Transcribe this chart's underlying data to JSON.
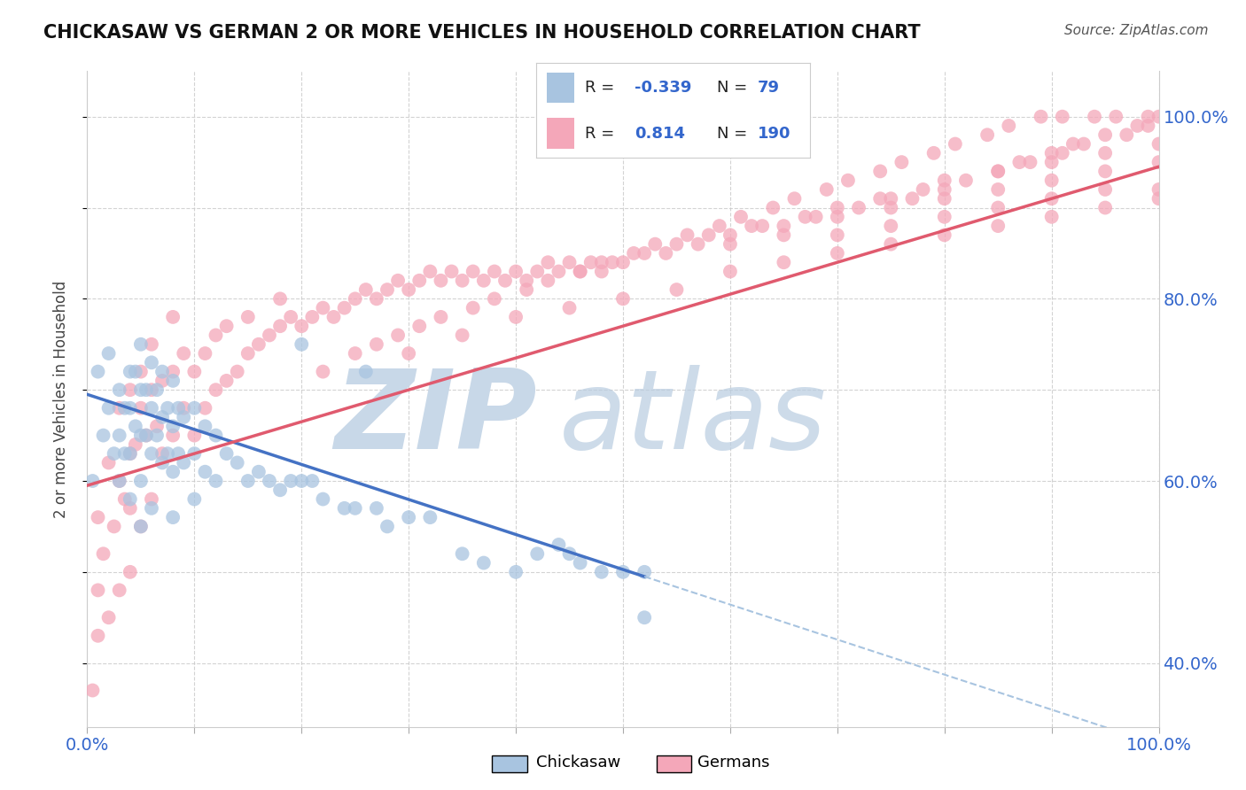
{
  "title": "CHICKASAW VS GERMAN 2 OR MORE VEHICLES IN HOUSEHOLD CORRELATION CHART",
  "source_text": "Source: ZipAtlas.com",
  "ylabel": "2 or more Vehicles in Household",
  "xlim": [
    0.0,
    1.0
  ],
  "ylim": [
    0.33,
    1.05
  ],
  "x_ticks": [
    0.0,
    0.1,
    0.2,
    0.3,
    0.4,
    0.5,
    0.6,
    0.7,
    0.8,
    0.9,
    1.0
  ],
  "x_tick_labels": [
    "0.0%",
    "",
    "",
    "",
    "",
    "",
    "",
    "",
    "",
    "",
    "100.0%"
  ],
  "y_ticks_right": [
    0.4,
    0.5,
    0.6,
    0.7,
    0.8,
    0.9,
    1.0
  ],
  "y_tick_labels_right": [
    "40.0%",
    "",
    "60.0%",
    "",
    "80.0%",
    "",
    "100.0%"
  ],
  "chickasaw_color": "#a8c4e0",
  "german_color": "#f4a7b9",
  "line_chickasaw_color": "#4472c4",
  "line_german_color": "#e05a6e",
  "dashed_line_color": "#a8c4e0",
  "watermark_zip_color": "#c8d8e8",
  "watermark_atlas_color": "#b8cce0",
  "background_color": "#ffffff",
  "grid_color": "#c8c8c8",
  "chick_line_x0": 0.0,
  "chick_line_y0": 0.695,
  "chick_line_x1": 0.52,
  "chick_line_y1": 0.495,
  "germ_line_x0": 0.0,
  "germ_line_y0": 0.595,
  "germ_line_x1": 1.0,
  "germ_line_y1": 0.945,
  "chickasaw_x": [
    0.005,
    0.01,
    0.015,
    0.02,
    0.02,
    0.025,
    0.03,
    0.03,
    0.03,
    0.035,
    0.035,
    0.04,
    0.04,
    0.04,
    0.04,
    0.045,
    0.045,
    0.05,
    0.05,
    0.05,
    0.05,
    0.05,
    0.055,
    0.055,
    0.06,
    0.06,
    0.06,
    0.06,
    0.065,
    0.065,
    0.07,
    0.07,
    0.07,
    0.075,
    0.075,
    0.08,
    0.08,
    0.08,
    0.08,
    0.085,
    0.085,
    0.09,
    0.09,
    0.1,
    0.1,
    0.1,
    0.11,
    0.11,
    0.12,
    0.12,
    0.13,
    0.14,
    0.15,
    0.16,
    0.17,
    0.18,
    0.19,
    0.2,
    0.21,
    0.22,
    0.24,
    0.25,
    0.27,
    0.28,
    0.3,
    0.32,
    0.35,
    0.37,
    0.4,
    0.42,
    0.44,
    0.45,
    0.46,
    0.48,
    0.5,
    0.52,
    0.52,
    0.2,
    0.26
  ],
  "chickasaw_y": [
    0.6,
    0.72,
    0.65,
    0.74,
    0.68,
    0.63,
    0.7,
    0.65,
    0.6,
    0.68,
    0.63,
    0.72,
    0.68,
    0.63,
    0.58,
    0.72,
    0.66,
    0.75,
    0.7,
    0.65,
    0.6,
    0.55,
    0.7,
    0.65,
    0.73,
    0.68,
    0.63,
    0.57,
    0.7,
    0.65,
    0.72,
    0.67,
    0.62,
    0.68,
    0.63,
    0.71,
    0.66,
    0.61,
    0.56,
    0.68,
    0.63,
    0.67,
    0.62,
    0.68,
    0.63,
    0.58,
    0.66,
    0.61,
    0.65,
    0.6,
    0.63,
    0.62,
    0.6,
    0.61,
    0.6,
    0.59,
    0.6,
    0.6,
    0.6,
    0.58,
    0.57,
    0.57,
    0.57,
    0.55,
    0.56,
    0.56,
    0.52,
    0.51,
    0.5,
    0.52,
    0.53,
    0.52,
    0.51,
    0.5,
    0.5,
    0.5,
    0.45,
    0.75,
    0.72
  ],
  "german_x": [
    0.005,
    0.01,
    0.01,
    0.01,
    0.015,
    0.02,
    0.02,
    0.025,
    0.03,
    0.03,
    0.03,
    0.035,
    0.04,
    0.04,
    0.04,
    0.04,
    0.045,
    0.05,
    0.05,
    0.05,
    0.055,
    0.06,
    0.06,
    0.06,
    0.065,
    0.07,
    0.07,
    0.08,
    0.08,
    0.08,
    0.09,
    0.09,
    0.1,
    0.1,
    0.11,
    0.11,
    0.12,
    0.12,
    0.13,
    0.13,
    0.14,
    0.15,
    0.15,
    0.16,
    0.17,
    0.18,
    0.18,
    0.19,
    0.2,
    0.21,
    0.22,
    0.23,
    0.24,
    0.25,
    0.26,
    0.27,
    0.28,
    0.29,
    0.3,
    0.31,
    0.32,
    0.33,
    0.34,
    0.35,
    0.36,
    0.37,
    0.38,
    0.39,
    0.4,
    0.41,
    0.42,
    0.43,
    0.44,
    0.45,
    0.46,
    0.47,
    0.48,
    0.49,
    0.5,
    0.52,
    0.54,
    0.55,
    0.57,
    0.58,
    0.6,
    0.62,
    0.63,
    0.65,
    0.67,
    0.68,
    0.7,
    0.72,
    0.74,
    0.75,
    0.77,
    0.78,
    0.8,
    0.82,
    0.85,
    0.87,
    0.88,
    0.9,
    0.91,
    0.92,
    0.93,
    0.95,
    0.97,
    0.98,
    0.99,
    1.0,
    0.3,
    0.35,
    0.4,
    0.45,
    0.5,
    0.55,
    0.6,
    0.65,
    0.7,
    0.75,
    0.8,
    0.85,
    0.9,
    0.95,
    1.0,
    0.6,
    0.65,
    0.7,
    0.75,
    0.8,
    0.85,
    0.9,
    0.95,
    1.0,
    0.7,
    0.75,
    0.8,
    0.85,
    0.9,
    0.95,
    1.0,
    0.8,
    0.85,
    0.9,
    0.95,
    1.0,
    0.22,
    0.25,
    0.27,
    0.29,
    0.31,
    0.33,
    0.36,
    0.38,
    0.41,
    0.43,
    0.46,
    0.48,
    0.51,
    0.53,
    0.56,
    0.59,
    0.61,
    0.64,
    0.66,
    0.69,
    0.71,
    0.74,
    0.76,
    0.79,
    0.81,
    0.84,
    0.86,
    0.89,
    0.91,
    0.94,
    0.96,
    0.99
  ],
  "german_y": [
    0.37,
    0.43,
    0.56,
    0.48,
    0.52,
    0.45,
    0.62,
    0.55,
    0.48,
    0.6,
    0.68,
    0.58,
    0.5,
    0.63,
    0.7,
    0.57,
    0.64,
    0.55,
    0.68,
    0.72,
    0.65,
    0.58,
    0.7,
    0.75,
    0.66,
    0.63,
    0.71,
    0.65,
    0.72,
    0.78,
    0.68,
    0.74,
    0.65,
    0.72,
    0.68,
    0.74,
    0.7,
    0.76,
    0.71,
    0.77,
    0.72,
    0.74,
    0.78,
    0.75,
    0.76,
    0.77,
    0.8,
    0.78,
    0.77,
    0.78,
    0.79,
    0.78,
    0.79,
    0.8,
    0.81,
    0.8,
    0.81,
    0.82,
    0.81,
    0.82,
    0.83,
    0.82,
    0.83,
    0.82,
    0.83,
    0.82,
    0.83,
    0.82,
    0.83,
    0.82,
    0.83,
    0.84,
    0.83,
    0.84,
    0.83,
    0.84,
    0.83,
    0.84,
    0.84,
    0.85,
    0.85,
    0.86,
    0.86,
    0.87,
    0.87,
    0.88,
    0.88,
    0.88,
    0.89,
    0.89,
    0.9,
    0.9,
    0.91,
    0.91,
    0.91,
    0.92,
    0.92,
    0.93,
    0.94,
    0.95,
    0.95,
    0.96,
    0.96,
    0.97,
    0.97,
    0.98,
    0.98,
    0.99,
    0.99,
    1.0,
    0.74,
    0.76,
    0.78,
    0.79,
    0.8,
    0.81,
    0.83,
    0.84,
    0.85,
    0.86,
    0.87,
    0.88,
    0.89,
    0.9,
    0.91,
    0.86,
    0.87,
    0.87,
    0.88,
    0.89,
    0.9,
    0.91,
    0.92,
    0.92,
    0.89,
    0.9,
    0.91,
    0.92,
    0.93,
    0.94,
    0.95,
    0.93,
    0.94,
    0.95,
    0.96,
    0.97,
    0.72,
    0.74,
    0.75,
    0.76,
    0.77,
    0.78,
    0.79,
    0.8,
    0.81,
    0.82,
    0.83,
    0.84,
    0.85,
    0.86,
    0.87,
    0.88,
    0.89,
    0.9,
    0.91,
    0.92,
    0.93,
    0.94,
    0.95,
    0.96,
    0.97,
    0.98,
    0.99,
    1.0,
    1.0,
    1.0,
    1.0,
    1.0
  ]
}
